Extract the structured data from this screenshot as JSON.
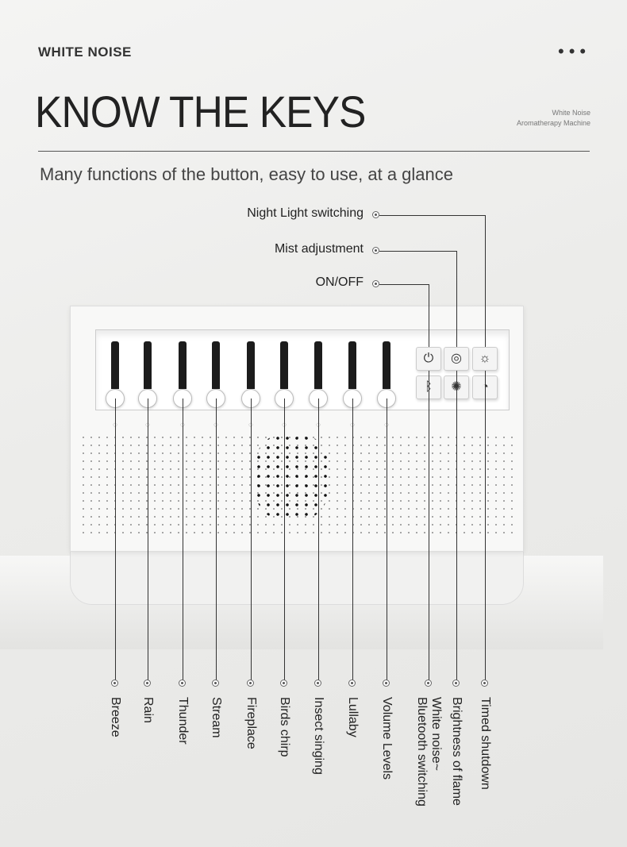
{
  "header": {
    "brand": "WHITE NOISE",
    "menu_icon": "ellipsis-icon",
    "menu_glyph": "•••",
    "title": "KNOW THE KEYS",
    "product_line1": "White Noise",
    "product_line2": "Aromatherapy Machine",
    "tagline": "Many functions of the button, easy to use, at a glance"
  },
  "top_callouts": [
    {
      "label": "Night Light switching"
    },
    {
      "label": "Mist adjustment"
    },
    {
      "label": "ON/OFF"
    }
  ],
  "right_buttons": [
    {
      "icon": "power-icon",
      "glyph": "⏻"
    },
    {
      "icon": "mist-icon",
      "glyph": "◎"
    },
    {
      "icon": "night-light-icon",
      "glyph": "☼"
    },
    {
      "icon": "bluetooth-icon",
      "glyph": "ᛒ"
    },
    {
      "icon": "flame-brightness-icon",
      "glyph": "✺"
    },
    {
      "icon": "timer-icon",
      "glyph": "◔"
    }
  ],
  "bottom_labels": [
    "Breeze",
    "Rain",
    "Thunder",
    "Stream",
    "Fireplace",
    "Birds chirp",
    "Insect singing",
    "Lullaby",
    "Volume Levels",
    "White noise~\nBluetooth switching",
    "Brightness of flame",
    "Timed shutdown"
  ]
}
